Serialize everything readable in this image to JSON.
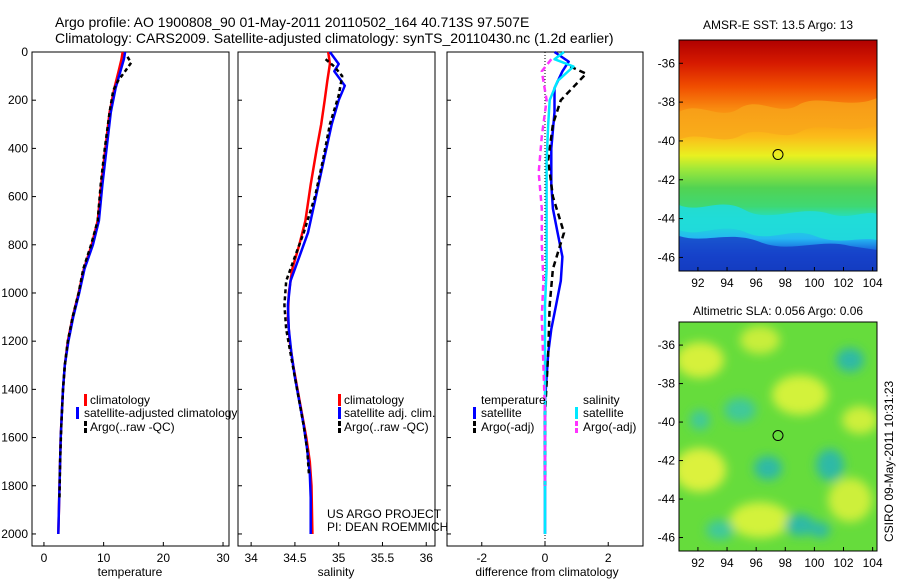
{
  "header": {
    "line1": "Argo profile: AO 1900808_90 01-May-2011 20110502_164 40.713S 97.507E",
    "line2": "Climatology: CARS2009. Satellite-adjusted climatology: synTS_20110430.nc (1.2d earlier)"
  },
  "credit": {
    "project": "US ARGO PROJECT",
    "pi": "PI: DEAN ROEMMICH",
    "stamp": "CSIRO 09-May-2011 10:31:23"
  },
  "colors": {
    "red": "#ff0000",
    "blue": "#0000ff",
    "black": "#000000",
    "cyan": "#00e8ff",
    "magenta": "#ff33ff"
  },
  "chart_data": [
    {
      "type": "line",
      "id": "temperature",
      "xlabel": "temperature",
      "xlim": [
        -2,
        31
      ],
      "ylim": [
        0,
        2050
      ],
      "xticks": [
        0,
        10,
        20,
        30
      ],
      "yticks": [
        0,
        200,
        400,
        600,
        800,
        1000,
        1200,
        1400,
        1600,
        1800,
        2000
      ],
      "legend": [
        "climatology",
        "satellite-adjusted climatology",
        "Argo(..raw -QC)"
      ],
      "series": [
        {
          "name": "climatology",
          "color": "red",
          "dash": "",
          "points": [
            [
              13.2,
              0
            ],
            [
              13,
              30
            ],
            [
              12.5,
              80
            ],
            [
              11.8,
              150
            ],
            [
              11,
              250
            ],
            [
              10.3,
              400
            ],
            [
              9.6,
              550
            ],
            [
              9,
              700
            ],
            [
              8,
              800
            ],
            [
              6.7,
              900
            ],
            [
              5.8,
              1000
            ],
            [
              4.8,
              1100
            ],
            [
              4,
              1200
            ],
            [
              3.5,
              1300
            ],
            [
              3.2,
              1400
            ],
            [
              3.0,
              1500
            ],
            [
              2.8,
              1600
            ],
            [
              2.6,
              1800
            ],
            [
              2.4,
              2000
            ]
          ]
        },
        {
          "name": "satellite-adjusted climatology",
          "color": "blue",
          "dash": "",
          "points": [
            [
              13.6,
              0
            ],
            [
              13.4,
              30
            ],
            [
              12.8,
              80
            ],
            [
              12,
              150
            ],
            [
              11.2,
              250
            ],
            [
              10.5,
              400
            ],
            [
              9.8,
              550
            ],
            [
              9.2,
              700
            ],
            [
              8.2,
              800
            ],
            [
              6.8,
              900
            ],
            [
              5.9,
              1000
            ],
            [
              4.9,
              1100
            ],
            [
              4.1,
              1200
            ],
            [
              3.5,
              1300
            ],
            [
              3.2,
              1400
            ],
            [
              3.0,
              1500
            ],
            [
              2.8,
              1600
            ],
            [
              2.6,
              1800
            ],
            [
              2.4,
              2000
            ]
          ]
        },
        {
          "name": "Argo(..raw -QC)",
          "color": "black",
          "dash": "4,3",
          "points": [
            [
              14,
              20
            ],
            [
              14.6,
              45
            ],
            [
              13.6,
              80
            ],
            [
              12.4,
              120
            ],
            [
              11.6,
              160
            ],
            [
              11,
              250
            ],
            [
              10.2,
              400
            ],
            [
              9.5,
              550
            ],
            [
              9,
              700
            ],
            [
              7.9,
              800
            ],
            [
              6.6,
              900
            ],
            [
              5.8,
              1000
            ],
            [
              4.8,
              1100
            ],
            [
              4,
              1200
            ],
            [
              3.5,
              1300
            ],
            [
              3.2,
              1400
            ],
            [
              2.9,
              1550
            ],
            [
              2.7,
              1700
            ],
            [
              2.6,
              1850
            ]
          ]
        }
      ]
    },
    {
      "type": "line",
      "id": "salinity",
      "xlabel": "salinity",
      "xlim": [
        33.85,
        36.1
      ],
      "ylim": [
        0,
        2050
      ],
      "xticks": [
        34,
        34.5,
        35,
        35.5,
        36
      ],
      "yticks": [
        0,
        200,
        400,
        600,
        800,
        1000,
        1200,
        1400,
        1600,
        1800,
        2000
      ],
      "legend": [
        "climatology",
        "satellite adj. clim.",
        "Argo(..raw -QC)"
      ],
      "series": [
        {
          "name": "climatology",
          "color": "red",
          "dash": "",
          "points": [
            [
              34.88,
              0
            ],
            [
              34.9,
              50
            ],
            [
              34.87,
              120
            ],
            [
              34.84,
              200
            ],
            [
              34.8,
              300
            ],
            [
              34.75,
              400
            ],
            [
              34.68,
              550
            ],
            [
              34.62,
              700
            ],
            [
              34.55,
              800
            ],
            [
              34.47,
              900
            ],
            [
              34.43,
              1000
            ],
            [
              34.42,
              1100
            ],
            [
              34.44,
              1200
            ],
            [
              34.48,
              1300
            ],
            [
              34.53,
              1400
            ],
            [
              34.58,
              1500
            ],
            [
              34.63,
              1600
            ],
            [
              34.67,
              1700
            ],
            [
              34.69,
              1800
            ],
            [
              34.7,
              2000
            ]
          ]
        },
        {
          "name": "satellite adj. clim.",
          "color": "blue",
          "dash": "",
          "points": [
            [
              34.9,
              0
            ],
            [
              35.0,
              50
            ],
            [
              34.95,
              80
            ],
            [
              35.07,
              140
            ],
            [
              35.0,
              200
            ],
            [
              34.92,
              300
            ],
            [
              34.83,
              450
            ],
            [
              34.74,
              600
            ],
            [
              34.65,
              750
            ],
            [
              34.55,
              850
            ],
            [
              34.45,
              950
            ],
            [
              34.42,
              1050
            ],
            [
              34.43,
              1150
            ],
            [
              34.46,
              1250
            ],
            [
              34.5,
              1350
            ],
            [
              34.55,
              1450
            ],
            [
              34.6,
              1550
            ],
            [
              34.64,
              1650
            ],
            [
              34.67,
              1750
            ],
            [
              34.68,
              1850
            ],
            [
              34.68,
              2000
            ]
          ]
        },
        {
          "name": "Argo(..raw -QC)",
          "color": "black",
          "dash": "4,3",
          "points": [
            [
              34.85,
              30
            ],
            [
              34.95,
              60
            ],
            [
              35.04,
              100
            ],
            [
              35.0,
              180
            ],
            [
              34.9,
              300
            ],
            [
              34.82,
              450
            ],
            [
              34.73,
              600
            ],
            [
              34.6,
              750
            ],
            [
              34.5,
              850
            ],
            [
              34.4,
              950
            ],
            [
              34.38,
              1050
            ],
            [
              34.4,
              1150
            ],
            [
              34.45,
              1250
            ],
            [
              34.5,
              1350
            ],
            [
              34.55,
              1450
            ],
            [
              34.6,
              1550
            ],
            [
              34.64,
              1650
            ],
            [
              34.66,
              1750
            ]
          ]
        }
      ]
    },
    {
      "type": "line",
      "id": "difference",
      "xlabel": "difference from climatology",
      "xlim": [
        -3.1,
        3.1
      ],
      "ylim": [
        0,
        2050
      ],
      "xticks": [
        -2,
        0,
        2
      ],
      "yticks": [
        0,
        200,
        400,
        600,
        800,
        1000,
        1200,
        1400,
        1600,
        1800,
        2000
      ],
      "legend_groups": [
        "temperature",
        "salinity"
      ],
      "legend": [
        "satellite",
        "Argo(-adj)",
        "satellite",
        "Argo(-adj)"
      ],
      "series": [
        {
          "name": "temperature satellite",
          "color": "blue",
          "dash": "",
          "points": [
            [
              0.3,
              0
            ],
            [
              0.75,
              40
            ],
            [
              0.55,
              80
            ],
            [
              0.3,
              150
            ],
            [
              0.3,
              250
            ],
            [
              0.2,
              400
            ],
            [
              0.2,
              550
            ],
            [
              0.25,
              650
            ],
            [
              0.4,
              750
            ],
            [
              0.55,
              850
            ],
            [
              0.5,
              950
            ],
            [
              0.35,
              1050
            ],
            [
              0.2,
              1150
            ],
            [
              0.1,
              1250
            ],
            [
              0.05,
              1350
            ],
            [
              0,
              1450
            ],
            [
              0,
              1600
            ],
            [
              0,
              1800
            ],
            [
              0,
              2000
            ]
          ]
        },
        {
          "name": "temperature Argo(-adj)",
          "color": "black",
          "dash": "6,4",
          "points": [
            [
              0.8,
              60
            ],
            [
              1.3,
              90
            ],
            [
              0.5,
              200
            ],
            [
              0.25,
              300
            ],
            [
              0.1,
              450
            ],
            [
              0.25,
              600
            ],
            [
              0.6,
              750
            ],
            [
              0.25,
              900
            ],
            [
              0.15,
              1050
            ],
            [
              0.1,
              1250
            ],
            [
              0,
              1500
            ],
            [
              0,
              1800
            ]
          ]
        },
        {
          "name": "salinity satellite",
          "color": "cyan",
          "dash": "",
          "points": [
            [
              0.6,
              0
            ],
            [
              0.3,
              30
            ],
            [
              0.9,
              60
            ],
            [
              0.4,
              120
            ],
            [
              0.15,
              200
            ],
            [
              0.1,
              300
            ],
            [
              0.05,
              450
            ],
            [
              0.05,
              600
            ],
            [
              0.05,
              750
            ],
            [
              0.05,
              900
            ],
            [
              0,
              1050
            ],
            [
              0,
              1200
            ],
            [
              0,
              1400
            ],
            [
              0,
              1600
            ],
            [
              0,
              1800
            ],
            [
              0,
              2000
            ]
          ]
        },
        {
          "name": "salinity Argo(-adj)",
          "color": "magenta",
          "dash": "6,4",
          "points": [
            [
              0.2,
              30
            ],
            [
              -0.1,
              80
            ],
            [
              0.05,
              200
            ],
            [
              -0.1,
              350
            ],
            [
              -0.2,
              500
            ],
            [
              -0.1,
              650
            ],
            [
              -0.1,
              800
            ],
            [
              -0.05,
              950
            ],
            [
              -0.1,
              1100
            ],
            [
              -0.05,
              1300
            ],
            [
              0,
              1500
            ],
            [
              0,
              1800
            ]
          ]
        }
      ]
    },
    {
      "type": "heatmap",
      "id": "sst-map",
      "title": "AMSR-E SST: 13.5 Argo: 13",
      "xticks": [
        92,
        94,
        96,
        98,
        100,
        102,
        104
      ],
      "yticks": [
        -36,
        -38,
        -40,
        -42,
        -44,
        -46
      ],
      "xlim": [
        90.7,
        104.3
      ],
      "ylim": [
        -46.7,
        -34.8
      ],
      "marker": [
        97.5,
        -40.7
      ]
    },
    {
      "type": "heatmap",
      "id": "sla-map",
      "title": "Altimetric SLA: 0.056 Argo: 0.06",
      "xticks": [
        92,
        94,
        96,
        98,
        100,
        102,
        104
      ],
      "yticks": [
        -36,
        -38,
        -40,
        -42,
        -44,
        -46
      ],
      "xlim": [
        90.7,
        104.3
      ],
      "ylim": [
        -46.7,
        -34.8
      ],
      "marker": [
        97.5,
        -40.7
      ]
    }
  ]
}
